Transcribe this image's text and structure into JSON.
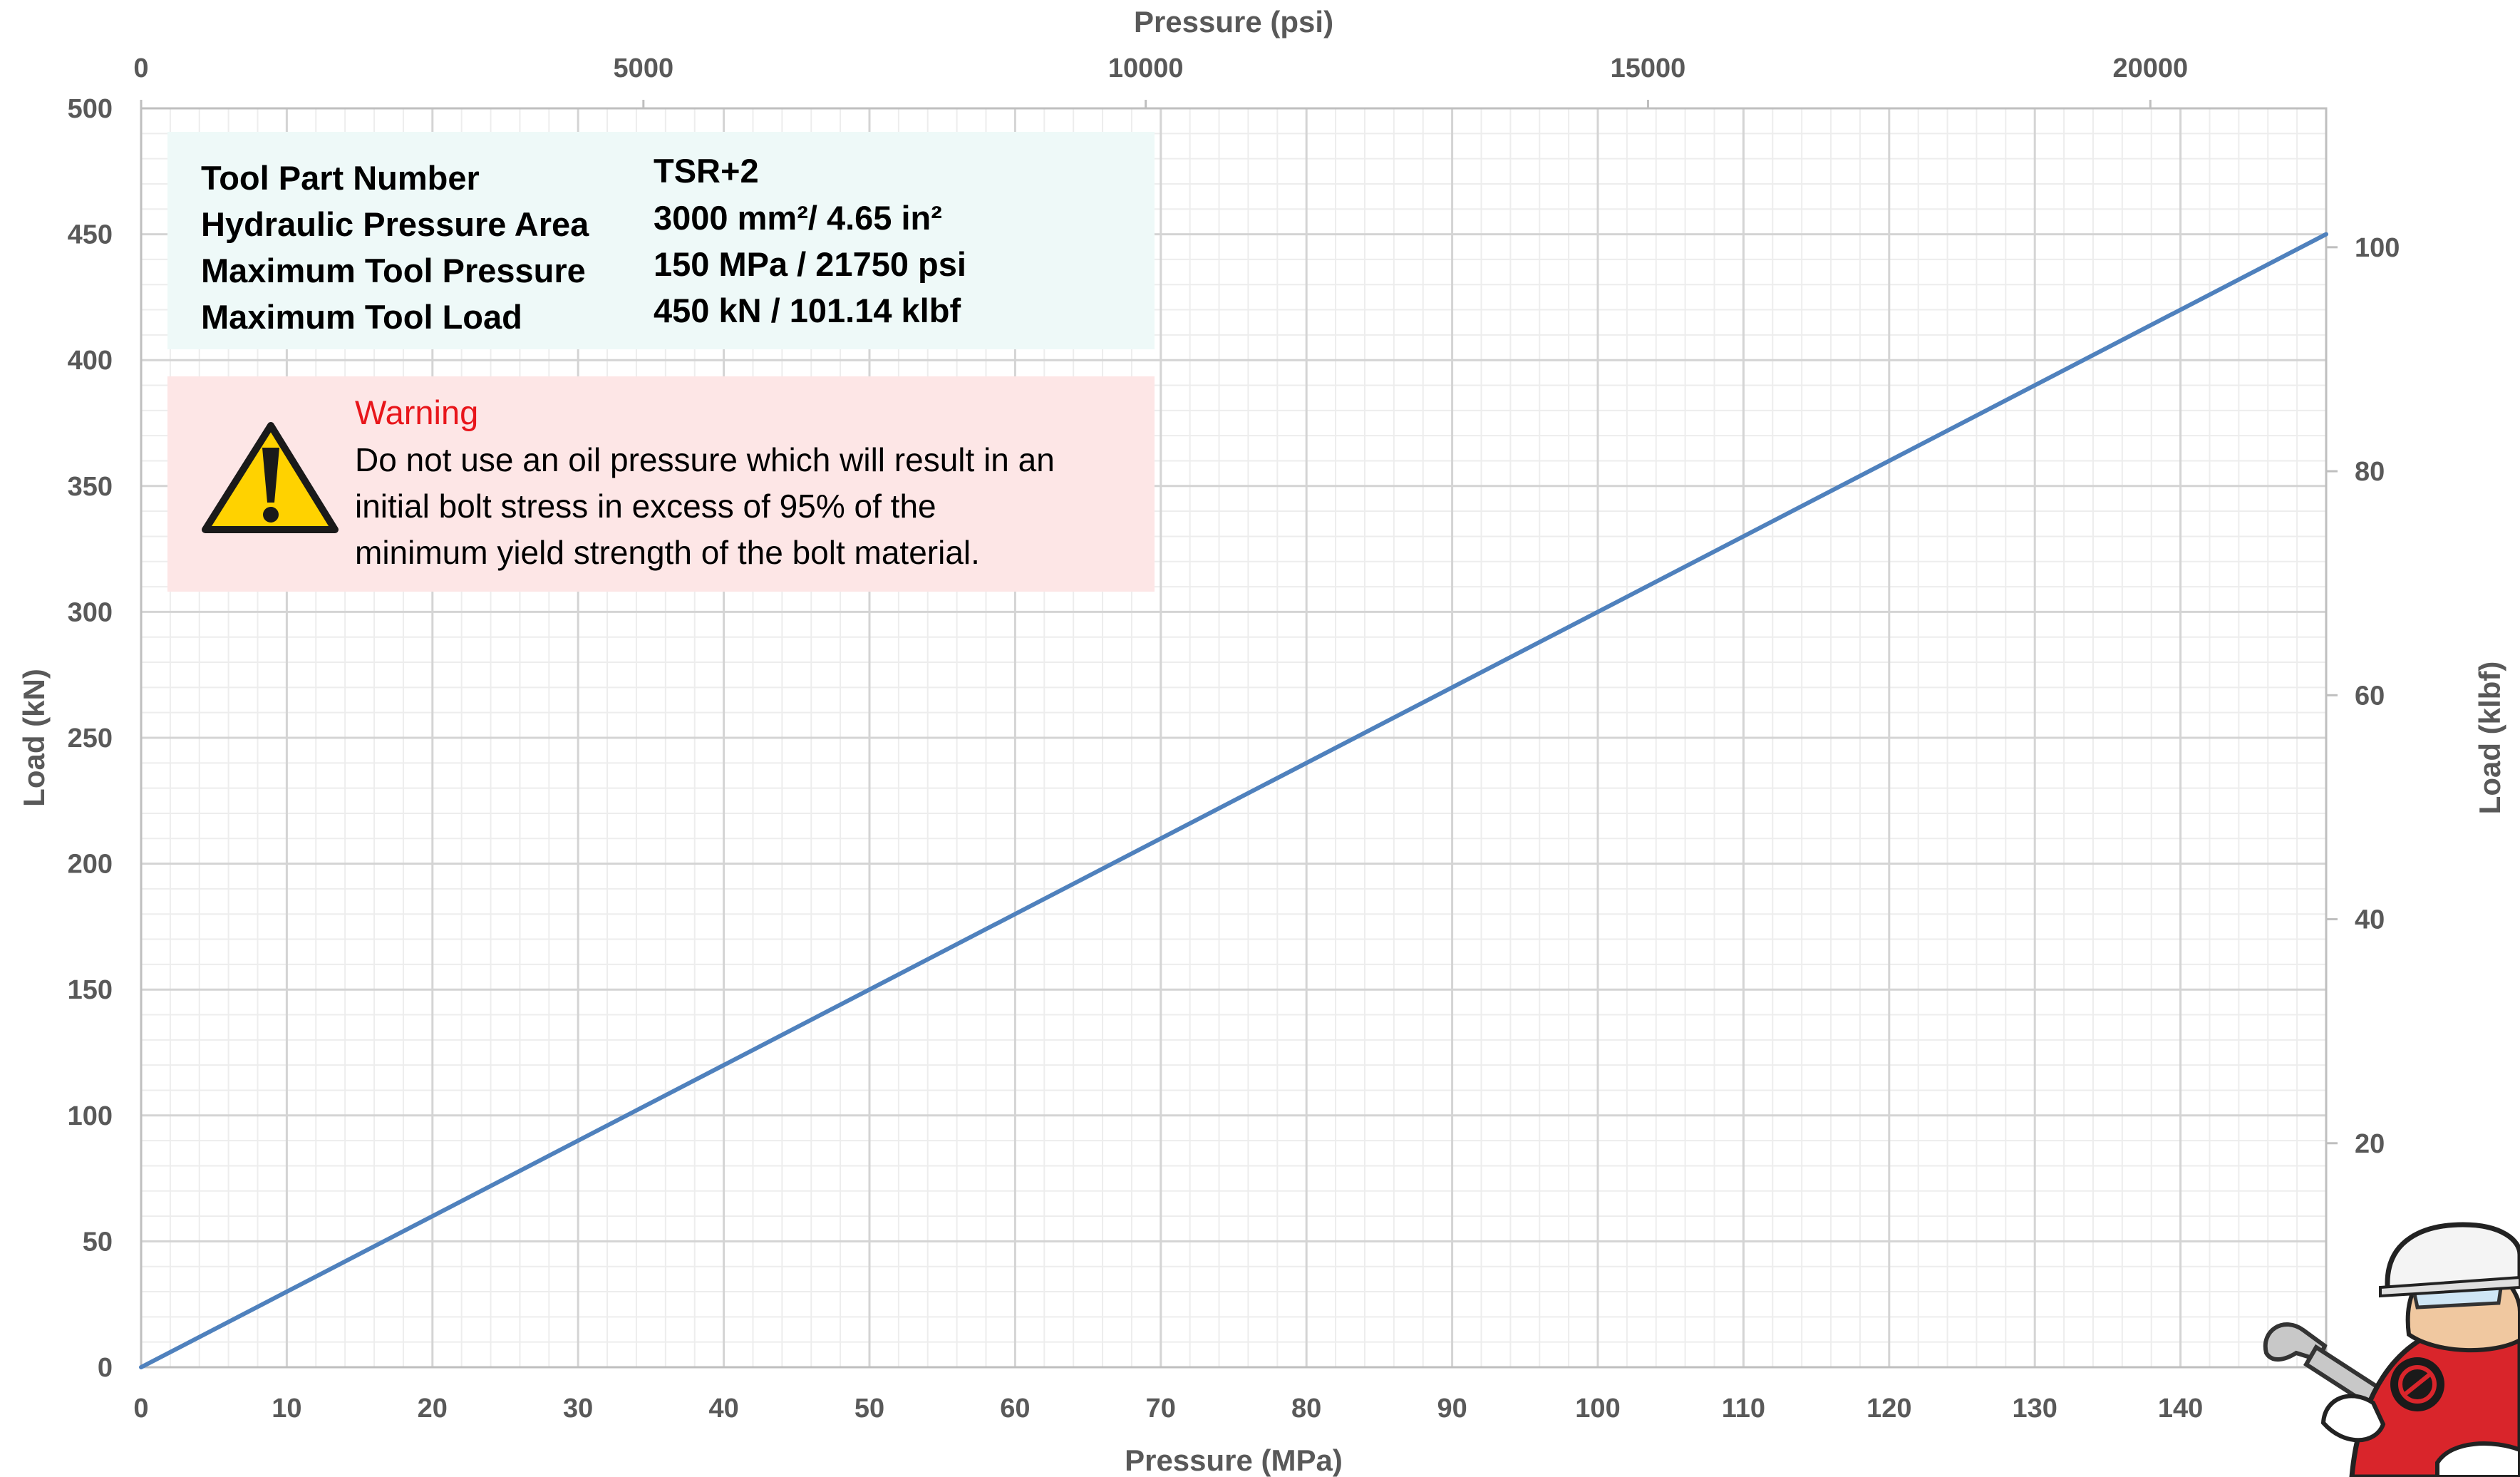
{
  "chart_data": {
    "type": "line",
    "x_axis_bottom": {
      "label": "Pressure (MPa)",
      "min": 0,
      "max": 150,
      "ticks": [
        0,
        10,
        20,
        30,
        40,
        50,
        60,
        70,
        80,
        90,
        100,
        110,
        120,
        130,
        140
      ]
    },
    "x_axis_top": {
      "label": "Pressure (psi)",
      "min": 0,
      "max": 21750,
      "ticks": [
        0,
        5000,
        10000,
        15000,
        20000
      ]
    },
    "y_axis_left": {
      "label": "Load (kN)",
      "min": 0,
      "max": 500,
      "ticks": [
        0,
        50,
        100,
        150,
        200,
        250,
        300,
        350,
        400,
        450,
        500
      ]
    },
    "y_axis_right": {
      "label": "Load (klbf)",
      "min": 0,
      "max": 112.4,
      "ticks": [
        20,
        40,
        60,
        80,
        100
      ]
    },
    "grid": {
      "major": true,
      "minor": true
    },
    "series": [
      {
        "x": [
          0,
          150
        ],
        "y": [
          0,
          450
        ],
        "color": "#4f81bd"
      }
    ]
  },
  "info_box": {
    "rows": [
      {
        "label": "Tool Part Number",
        "value": "TSR+2"
      },
      {
        "label": "Hydraulic Pressure Area",
        "value": "3000 mm²/ 4.65 in²"
      },
      {
        "label": "Maximum Tool Pressure",
        "value": "150 MPa / 21750 psi"
      },
      {
        "label": "Maximum Tool Load",
        "value": "450 kN / 101.14 klbf"
      }
    ]
  },
  "warning_box": {
    "title": "Warning",
    "lines": [
      "Do not use an oil pressure which will result in an",
      "initial bolt stress in excess of 95% of the",
      "minimum yield strength of the bolt material."
    ]
  },
  "colors": {
    "line": "#4f81bd",
    "info_bg": "#eef9f8",
    "warning_bg": "#fde6e6",
    "warning_title": "#e8161b",
    "mascot_red": "#d9252b"
  },
  "icons": {
    "warning": "warning-triangle-icon",
    "mascot": "mechanic-mascot-icon"
  }
}
